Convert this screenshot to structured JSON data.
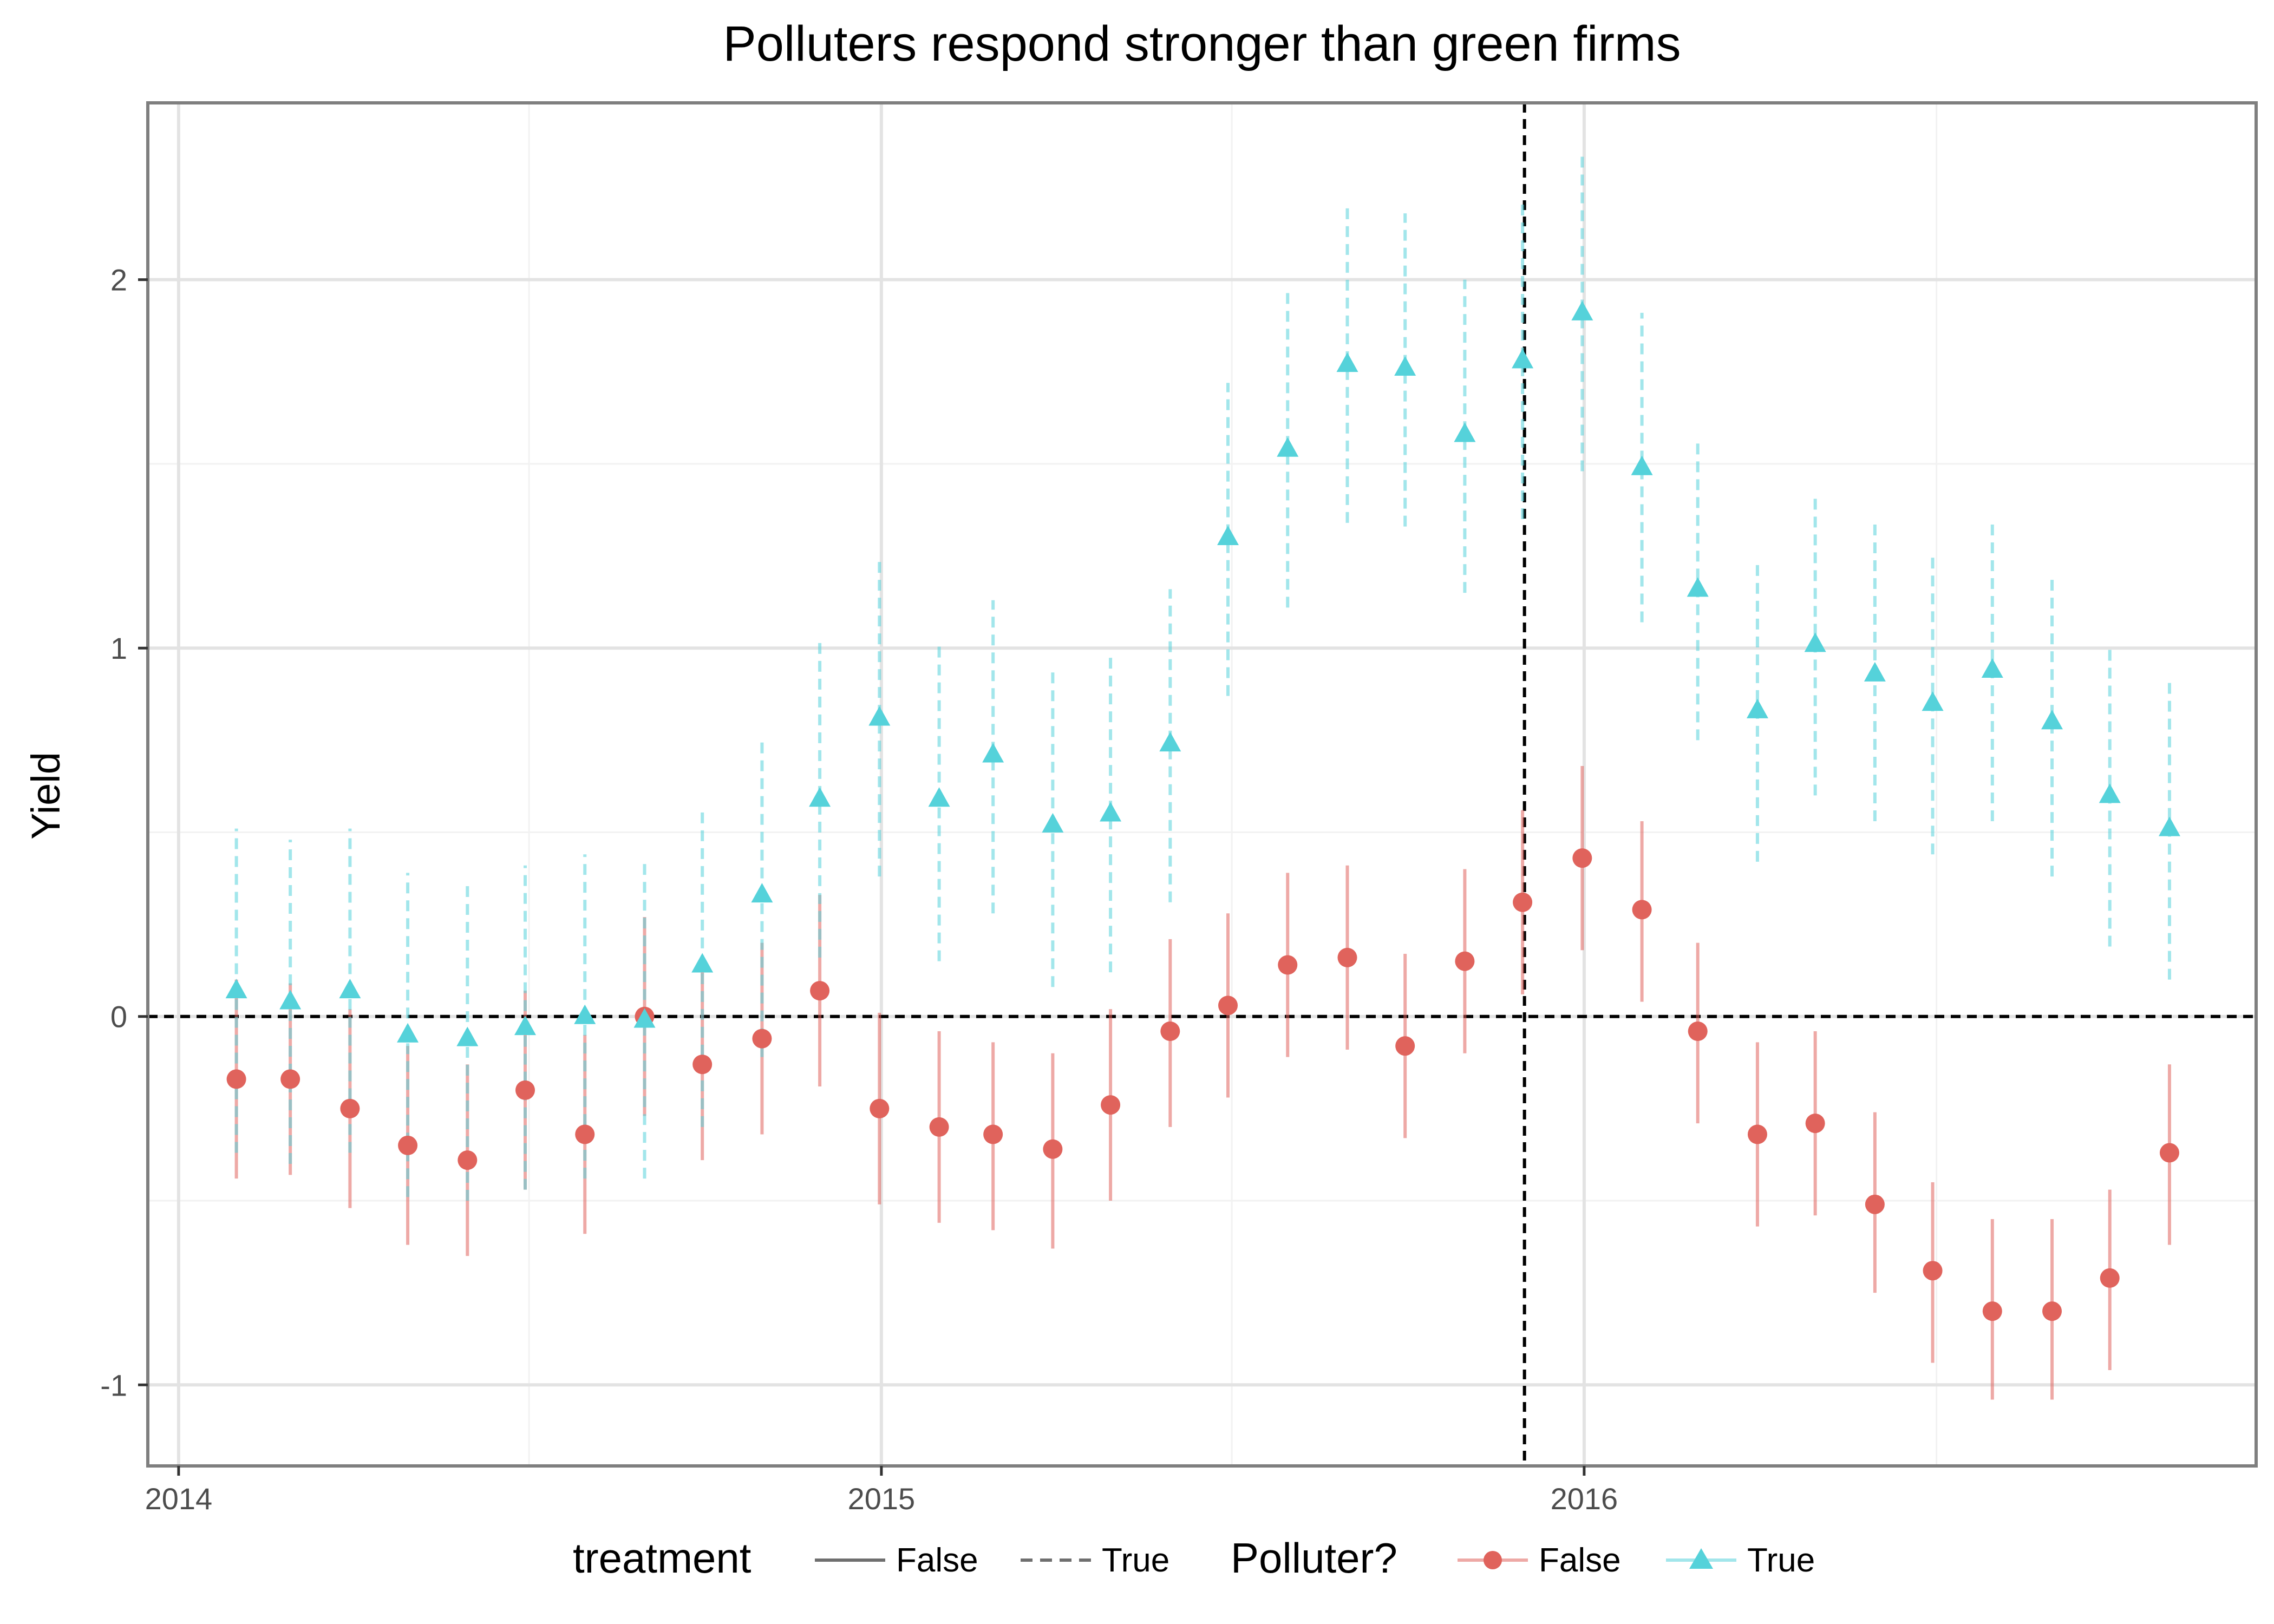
{
  "chart_data": {
    "type": "scatter",
    "title": "Polluters respond stronger than green firms",
    "xlabel": "",
    "ylabel": "Yield",
    "xlim": [
      "2013-12-16",
      "2016-12-15"
    ],
    "ylim": [
      -1.22,
      2.48
    ],
    "x_ticks": [
      {
        "label": "2014",
        "date": "2014-01-01"
      },
      {
        "label": "2015",
        "date": "2015-01-01"
      },
      {
        "label": "2016",
        "date": "2016-01-01"
      }
    ],
    "y_ticks": [
      {
        "label": "-1",
        "value": -1
      },
      {
        "label": "0",
        "value": 0
      },
      {
        "label": "1",
        "value": 1
      },
      {
        "label": "2",
        "value": 2
      }
    ],
    "grid": true,
    "reference_lines": {
      "horizontal_y": 0,
      "vertical_x": "2015-12-01"
    },
    "legend": {
      "position": "bottom",
      "treatment_title": "treatment",
      "treatment_items": [
        {
          "label": "False",
          "linetype": "solid"
        },
        {
          "label": "True",
          "linetype": "dashed"
        }
      ],
      "polluter_title": "Polluter?",
      "polluter_items": [
        {
          "label": "False",
          "shape": "circle",
          "color": "#e0635c"
        },
        {
          "label": "True",
          "shape": "triangle",
          "color": "#55d2da"
        }
      ]
    },
    "series": [
      {
        "name": "False",
        "color": "#e0635c",
        "shape": "circle",
        "linetype": "solid",
        "x": [
          "2014-01-31",
          "2014-02-28",
          "2014-03-31",
          "2014-04-30",
          "2014-05-31",
          "2014-06-30",
          "2014-07-31",
          "2014-08-31",
          "2014-09-30",
          "2014-10-31",
          "2014-11-30",
          "2014-12-31",
          "2015-01-31",
          "2015-02-28",
          "2015-03-31",
          "2015-04-30",
          "2015-05-31",
          "2015-06-30",
          "2015-07-31",
          "2015-08-31",
          "2015-09-30",
          "2015-10-31",
          "2015-11-30",
          "2015-12-31",
          "2016-01-31",
          "2016-02-29",
          "2016-03-31",
          "2016-04-30",
          "2016-05-31",
          "2016-06-30",
          "2016-07-31",
          "2016-08-31",
          "2016-09-30",
          "2016-10-31"
        ],
        "y": [
          -0.17,
          -0.17,
          -0.25,
          -0.35,
          -0.39,
          -0.2,
          -0.32,
          0.0,
          -0.13,
          -0.06,
          0.07,
          -0.25,
          -0.3,
          -0.32,
          -0.36,
          -0.24,
          -0.04,
          0.03,
          0.14,
          0.16,
          -0.08,
          0.15,
          0.31,
          0.43,
          0.29,
          -0.04,
          -0.32,
          -0.29,
          -0.51,
          -0.69,
          -0.8,
          -0.8,
          -0.71,
          -0.37
        ],
        "lower": [
          -0.44,
          -0.43,
          -0.52,
          -0.62,
          -0.65,
          -0.47,
          -0.59,
          -0.27,
          -0.39,
          -0.32,
          -0.19,
          -0.51,
          -0.56,
          -0.58,
          -0.63,
          -0.5,
          -0.3,
          -0.22,
          -0.11,
          -0.09,
          -0.33,
          -0.1,
          0.06,
          0.18,
          0.04,
          -0.29,
          -0.57,
          -0.54,
          -0.75,
          -0.94,
          -1.04,
          -1.04,
          -0.96,
          -0.62
        ],
        "upper": [
          0.1,
          0.09,
          0.02,
          -0.08,
          -0.13,
          0.07,
          -0.05,
          0.27,
          0.13,
          0.2,
          0.33,
          0.01,
          -0.04,
          -0.07,
          -0.1,
          0.02,
          0.21,
          0.28,
          0.39,
          0.41,
          0.17,
          0.4,
          0.56,
          0.68,
          0.53,
          0.2,
          -0.07,
          -0.04,
          -0.26,
          -0.45,
          -0.55,
          -0.55,
          -0.47,
          -0.13
        ]
      },
      {
        "name": "True",
        "color": "#55d2da",
        "shape": "triangle",
        "linetype": "dashed",
        "x": [
          "2014-01-31",
          "2014-02-28",
          "2014-03-31",
          "2014-04-30",
          "2014-05-31",
          "2014-06-30",
          "2014-07-31",
          "2014-08-31",
          "2014-09-30",
          "2014-10-31",
          "2014-11-30",
          "2014-12-31",
          "2015-01-31",
          "2015-02-28",
          "2015-03-31",
          "2015-04-30",
          "2015-05-31",
          "2015-06-30",
          "2015-07-31",
          "2015-08-31",
          "2015-09-30",
          "2015-10-31",
          "2015-11-30",
          "2015-12-31",
          "2016-01-31",
          "2016-02-29",
          "2016-03-31",
          "2016-04-30",
          "2016-05-31",
          "2016-06-30",
          "2016-07-31",
          "2016-08-31",
          "2016-09-30",
          "2016-10-31"
        ],
        "y": [
          0.07,
          0.04,
          0.07,
          -0.05,
          -0.06,
          -0.03,
          0.0,
          -0.01,
          0.14,
          0.33,
          0.59,
          0.81,
          0.59,
          0.71,
          0.52,
          0.55,
          0.74,
          1.3,
          1.54,
          1.77,
          1.76,
          1.58,
          1.78,
          1.91,
          1.49,
          1.16,
          0.83,
          1.01,
          0.93,
          0.85,
          0.94,
          0.8,
          0.6,
          0.51
        ],
        "lower": [
          -0.37,
          -0.4,
          -0.37,
          -0.49,
          -0.5,
          -0.47,
          -0.44,
          -0.44,
          -0.3,
          -0.11,
          0.16,
          0.38,
          0.15,
          0.28,
          0.08,
          0.12,
          0.31,
          0.87,
          1.11,
          1.34,
          1.33,
          1.15,
          1.35,
          1.48,
          1.07,
          0.75,
          0.42,
          0.6,
          0.53,
          0.44,
          0.53,
          0.38,
          0.19,
          0.1
        ],
        "upper": [
          0.51,
          0.48,
          0.51,
          0.39,
          0.37,
          0.41,
          0.44,
          0.43,
          0.57,
          0.76,
          1.02,
          1.24,
          1.02,
          1.13,
          0.95,
          0.98,
          1.16,
          1.72,
          1.97,
          2.2,
          2.18,
          2.0,
          2.21,
          2.34,
          1.91,
          1.57,
          1.24,
          1.42,
          1.34,
          1.26,
          1.35,
          1.2,
          1.0,
          0.91
        ]
      }
    ]
  }
}
